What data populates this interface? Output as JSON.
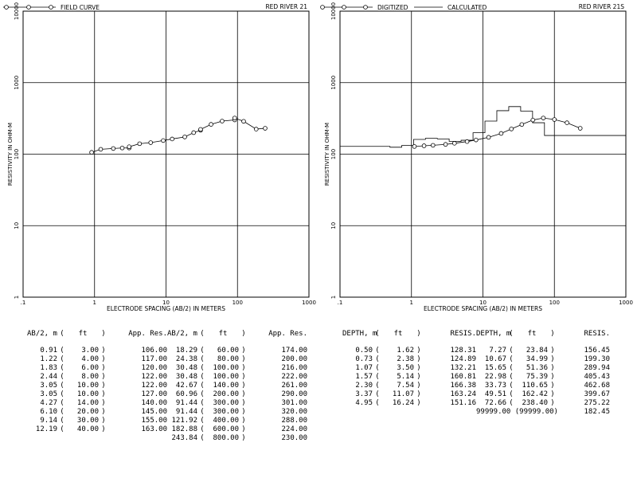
{
  "chart_data": [
    {
      "type": "line",
      "title": "RED RIVER 21",
      "xlabel": "ELECTRODE SPACING (AB/2) IN METERS",
      "ylabel": "RESISTIVITY IN OHM-M",
      "x_scale": "log",
      "y_scale": "log",
      "xlim": [
        0.1,
        1000
      ],
      "ylim": [
        1,
        10000
      ],
      "x_ticks": [
        ".1",
        "1",
        "10",
        "100",
        "1000"
      ],
      "y_ticks": [
        "1",
        "10",
        "100",
        "1000",
        "10000"
      ],
      "grid": true,
      "legend": "top-left",
      "series": [
        {
          "name": "FIELD CURVE",
          "x": [
            0.91,
            1.22,
            1.83,
            2.44,
            3.05,
            3.05,
            4.27,
            6.1,
            9.14,
            12.19,
            18.29,
            24.38,
            30.48,
            30.48,
            42.67,
            60.96,
            91.44,
            91.44,
            121.92,
            182.88,
            243.84
          ],
          "y": [
            106,
            117,
            120,
            122,
            122,
            127,
            140,
            145,
            155,
            163,
            174,
            200,
            216,
            222,
            261,
            290,
            301,
            320,
            288,
            224,
            230
          ]
        }
      ]
    },
    {
      "type": "line",
      "title": "RED RIVER 21S",
      "xlabel": "ELECTRODE SPACING (AB/2) IN METERS",
      "ylabel": "RESISTIVITY IN OHM-M",
      "x_scale": "log",
      "y_scale": "log",
      "xlim": [
        0.1,
        1000
      ],
      "ylim": [
        1,
        10000
      ],
      "x_ticks": [
        ".1",
        "1",
        "10",
        "100",
        "1000"
      ],
      "y_ticks": [
        "1",
        "10",
        "100",
        "1000",
        "10000"
      ],
      "grid": true,
      "legend": "top-left",
      "series": [
        {
          "name": "DIGITIZED",
          "x": [
            1.1,
            1.5,
            2,
            3,
            4,
            6,
            8,
            12,
            18,
            25,
            35,
            50,
            70,
            100,
            150,
            230
          ],
          "y": [
            128,
            131,
            133,
            137,
            142,
            150,
            158,
            172,
            195,
            225,
            260,
            300,
            320,
            305,
            275,
            230
          ]
        },
        {
          "name": "CALCULATED",
          "depth": [
            0.5,
            0.73,
            1.07,
            1.57,
            2.3,
            3.37,
            4.95,
            7.27,
            10.67,
            15.65,
            22.98,
            33.73,
            49.51,
            72.66,
            99999.0
          ],
          "resis": [
            128.31,
            124.89,
            132.21,
            160.81,
            166.38,
            163.24,
            151.16,
            156.45,
            199.3,
            289.94,
            405.43,
            462.68,
            399.67,
            275.22,
            182.45
          ]
        }
      ]
    }
  ],
  "tables": {
    "field": {
      "headers": [
        "AB/2, m",
        "(",
        "ft",
        ")",
        "App. Res.",
        "AB/2, m",
        "(",
        "ft",
        ")",
        "App. Res."
      ],
      "left_rows": [
        [
          "0.91",
          "3.00",
          "106.00"
        ],
        [
          "1.22",
          "4.00",
          "117.00"
        ],
        [
          "1.83",
          "6.00",
          "120.00"
        ],
        [
          "2.44",
          "8.00",
          "122.00"
        ],
        [
          "3.05",
          "10.00",
          "122.00"
        ],
        [
          "3.05",
          "10.00",
          "127.00"
        ],
        [
          "4.27",
          "14.00",
          "140.00"
        ],
        [
          "6.10",
          "20.00",
          "145.00"
        ],
        [
          "9.14",
          "30.00",
          "155.00"
        ],
        [
          "12.19",
          "40.00",
          "163.00"
        ]
      ],
      "right_rows": [
        [
          "18.29",
          "60.00",
          "174.00"
        ],
        [
          "24.38",
          "80.00",
          "200.00"
        ],
        [
          "30.48",
          "100.00",
          "216.00"
        ],
        [
          "30.48",
          "100.00",
          "222.00"
        ],
        [
          "42.67",
          "140.00",
          "261.00"
        ],
        [
          "60.96",
          "200.00",
          "290.00"
        ],
        [
          "91.44",
          "300.00",
          "301.00"
        ],
        [
          "91.44",
          "300.00",
          "320.00"
        ],
        [
          "121.92",
          "400.00",
          "288.00"
        ],
        [
          "182.88",
          "600.00",
          "224.00"
        ],
        [
          "243.84",
          "800.00",
          "230.00"
        ]
      ]
    },
    "model": {
      "headers": [
        "DEPTH, m",
        "(",
        "ft",
        ")",
        "RESIS.",
        "DEPTH, m",
        "(",
        "ft",
        ")",
        "RESIS."
      ],
      "left_rows": [
        [
          "0.50",
          "1.62",
          "128.31"
        ],
        [
          "0.73",
          "2.38",
          "124.89"
        ],
        [
          "1.07",
          "3.50",
          "132.21"
        ],
        [
          "1.57",
          "5.14",
          "160.81"
        ],
        [
          "2.30",
          "7.54",
          "166.38"
        ],
        [
          "3.37",
          "11.07",
          "163.24"
        ],
        [
          "4.95",
          "16.24",
          "151.16"
        ]
      ],
      "right_rows": [
        [
          "7.27",
          "23.84",
          "156.45"
        ],
        [
          "10.67",
          "34.99",
          "199.30"
        ],
        [
          "15.65",
          "51.36",
          "289.94"
        ],
        [
          "22.98",
          "75.39",
          "405.43"
        ],
        [
          "33.73",
          "110.65",
          "462.68"
        ],
        [
          "49.51",
          "162.42",
          "399.67"
        ],
        [
          "72.66",
          "238.40",
          "275.22"
        ],
        [
          "",
          "",
          "182.45",
          "99999.00 (99999.00)"
        ]
      ]
    }
  }
}
